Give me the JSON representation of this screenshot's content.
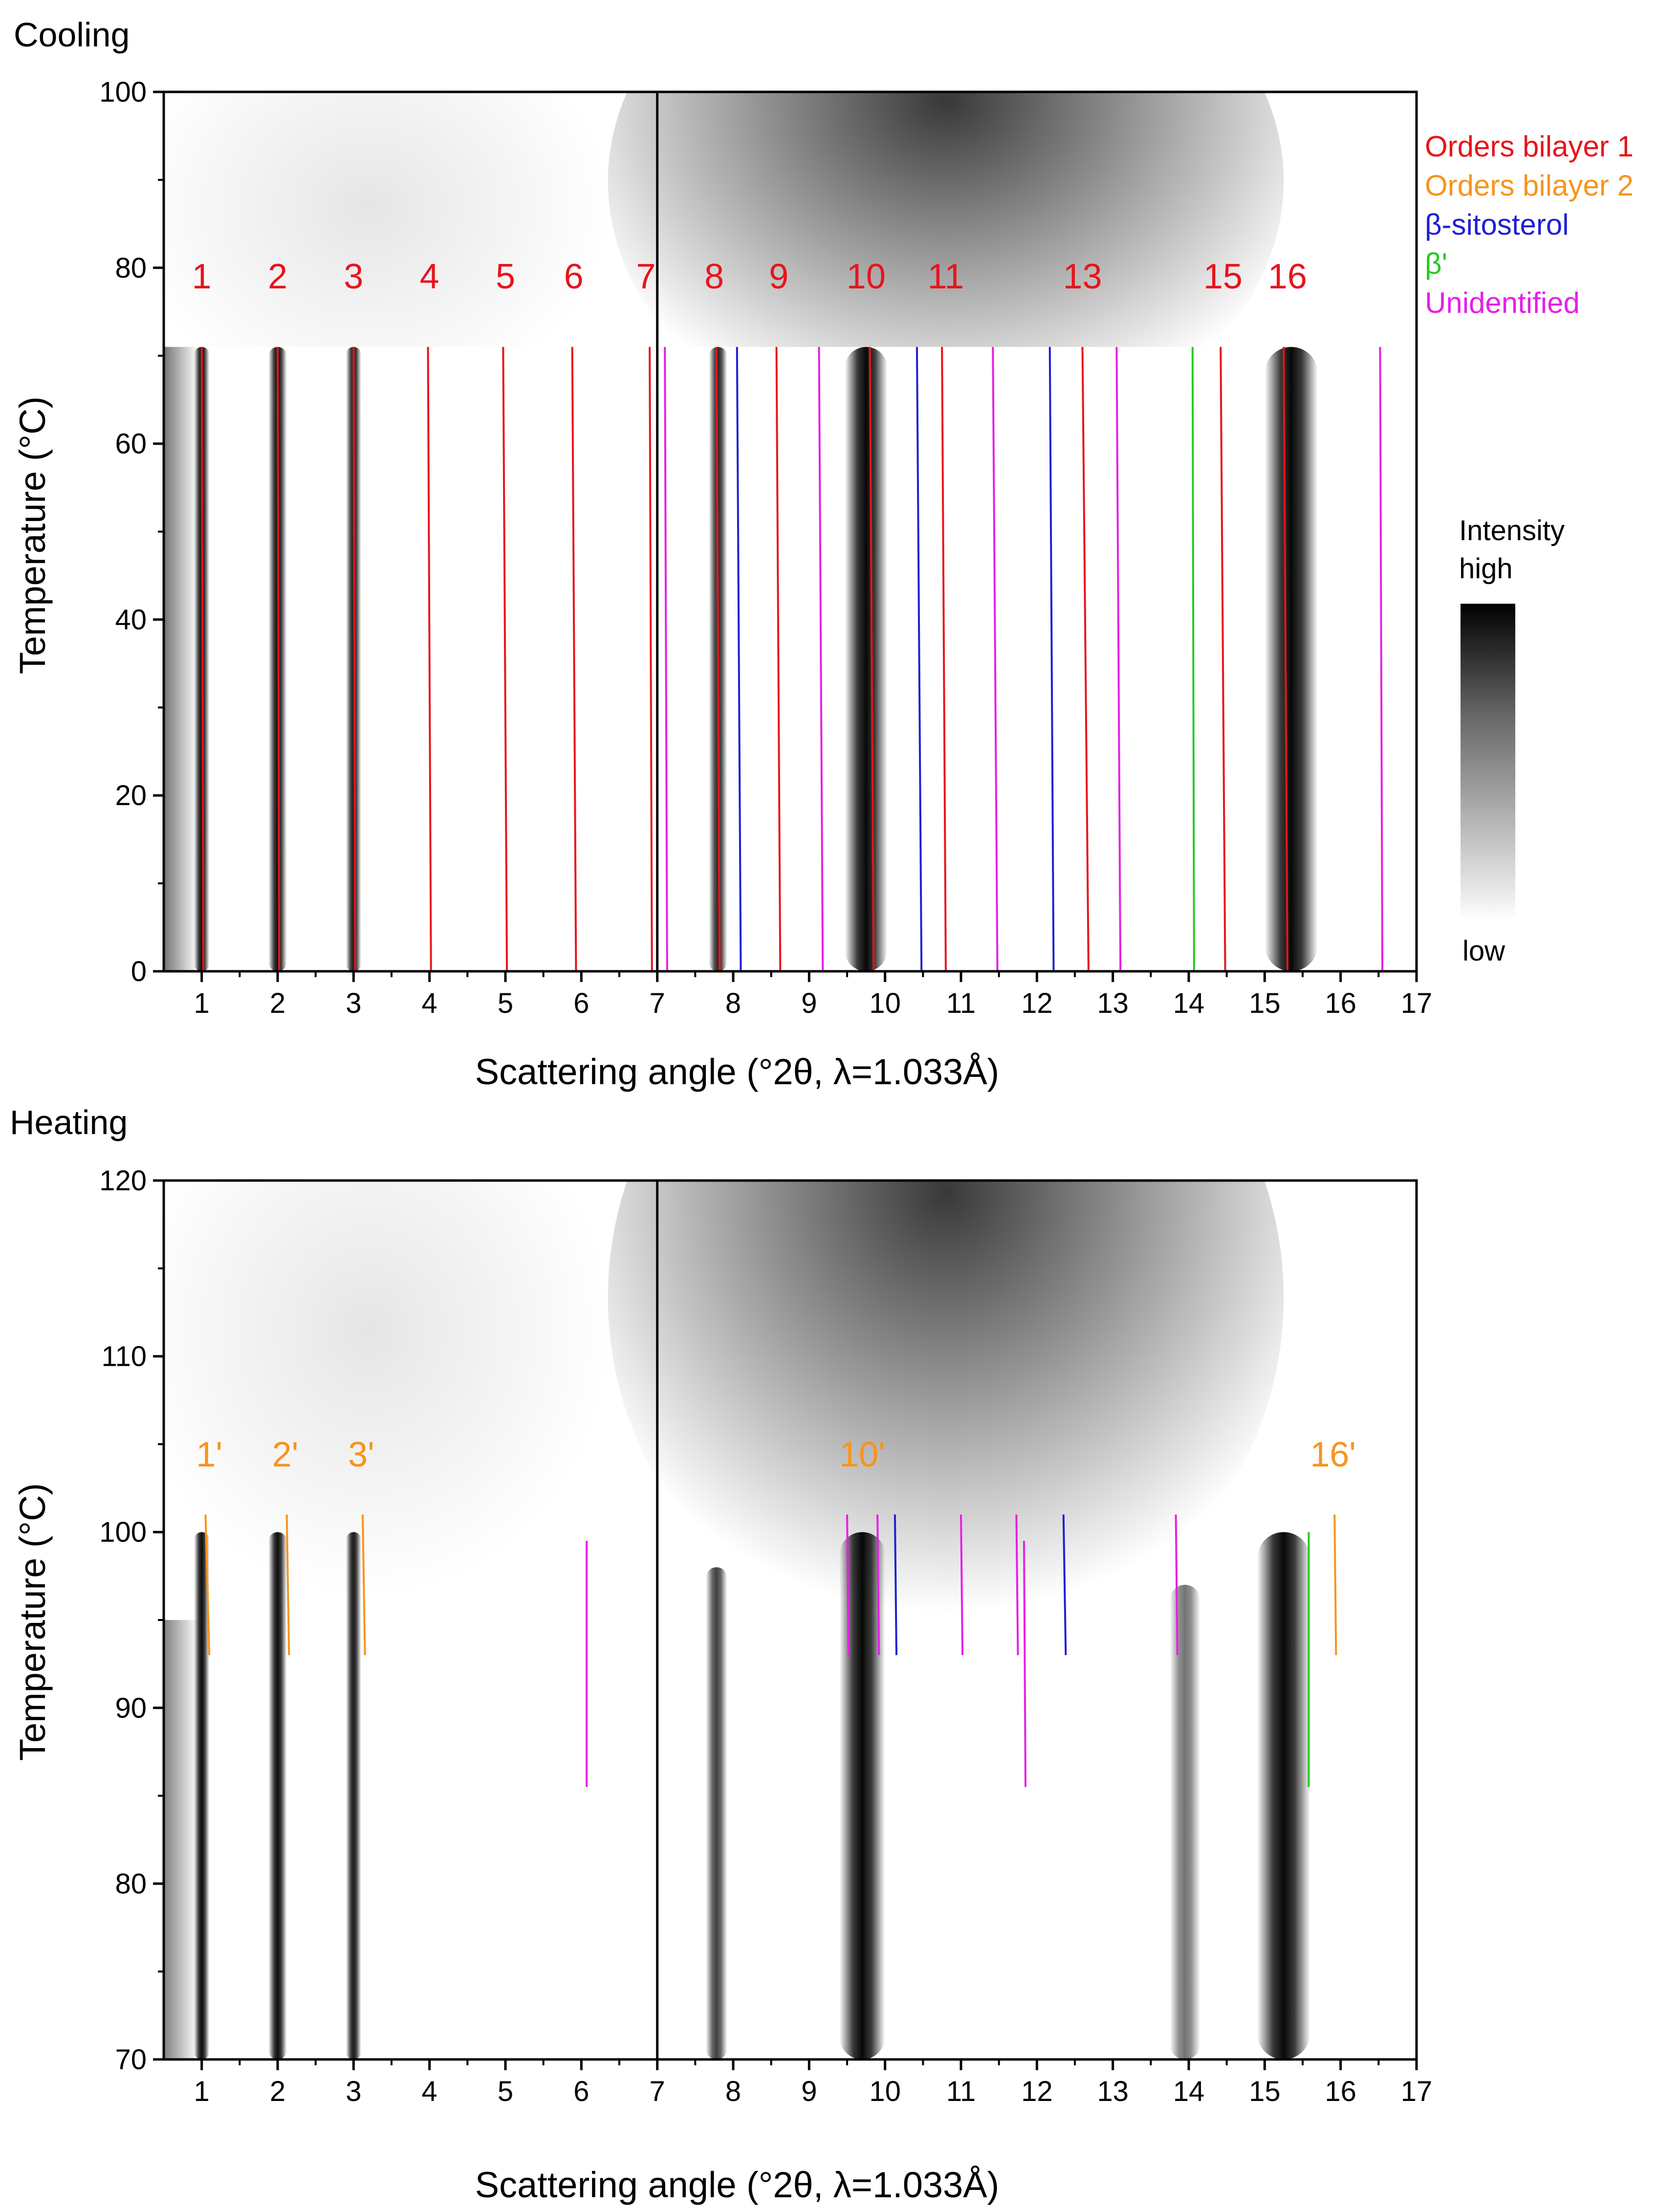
{
  "legend": [
    {
      "label": "Orders bilayer 1",
      "color": "#e8141b"
    },
    {
      "label": "Orders bilayer 2",
      "color": "#f7941d"
    },
    {
      "label": "β-sitosterol",
      "color": "#1f1fd6"
    },
    {
      "label": "β'",
      "color": "#22cc22"
    },
    {
      "label": "Unidentified",
      "color": "#e61fe6"
    }
  ],
  "colorbar": {
    "title": "Intensity",
    "high": "high",
    "low": "low"
  },
  "chart_data": [
    {
      "type": "heatmap",
      "panel_title": "Cooling",
      "xlabel": "Scattering angle (°2θ, λ=1.033Å)",
      "ylabel": "Temperature (°C)",
      "xlim": [
        0.5,
        17
      ],
      "ylim": [
        0,
        100
      ],
      "xticks": [
        1,
        2,
        3,
        4,
        5,
        6,
        7,
        8,
        9,
        10,
        11,
        12,
        13,
        14,
        15,
        16,
        17
      ],
      "yticks": [
        0,
        20,
        40,
        60,
        80,
        100
      ],
      "divider_x": 7,
      "transition_temp": 71,
      "order_labels": [
        {
          "text": "1",
          "x": 1.0
        },
        {
          "text": "2",
          "x": 2.0
        },
        {
          "text": "3",
          "x": 3.0
        },
        {
          "text": "4",
          "x": 4.0
        },
        {
          "text": "5",
          "x": 5.0
        },
        {
          "text": "6",
          "x": 5.9
        },
        {
          "text": "7",
          "x": 6.85
        },
        {
          "text": "8",
          "x": 7.75
        },
        {
          "text": "9",
          "x": 8.6
        },
        {
          "text": "10",
          "x": 9.75
        },
        {
          "text": "11",
          "x": 10.8
        },
        {
          "text": "13",
          "x": 12.6
        },
        {
          "text": "15",
          "x": 14.45
        },
        {
          "text": "16",
          "x": 15.3
        }
      ],
      "bands": [
        {
          "x": 1.0,
          "width": 0.1,
          "darkness": 0.95,
          "y_top": 71
        },
        {
          "x": 2.0,
          "width": 0.12,
          "darkness": 0.95,
          "y_top": 71
        },
        {
          "x": 3.0,
          "width": 0.1,
          "darkness": 0.9,
          "y_top": 71
        },
        {
          "x": 7.8,
          "width": 0.12,
          "darkness": 0.85,
          "y_top": 71
        },
        {
          "x": 9.75,
          "width": 0.28,
          "darkness": 0.97,
          "y_top": 71
        },
        {
          "x": 15.35,
          "width": 0.35,
          "darkness": 0.97,
          "y_top": 71
        }
      ],
      "marker_lines": [
        {
          "x": 1.0,
          "x_end": 1.02,
          "y": [
            0,
            71
          ],
          "category": 0
        },
        {
          "x": 2.0,
          "x_end": 2.02,
          "y": [
            0,
            71
          ],
          "category": 0
        },
        {
          "x": 3.0,
          "x_end": 3.02,
          "y": [
            0,
            71
          ],
          "category": 0
        },
        {
          "x": 3.98,
          "x_end": 4.02,
          "y": [
            0,
            71
          ],
          "category": 0
        },
        {
          "x": 4.97,
          "x_end": 5.02,
          "y": [
            0,
            71
          ],
          "category": 0
        },
        {
          "x": 5.88,
          "x_end": 5.93,
          "y": [
            0,
            71
          ],
          "category": 0
        },
        {
          "x": 6.9,
          "x_end": 6.93,
          "y": [
            0,
            71
          ],
          "category": 0
        },
        {
          "x": 7.1,
          "x_end": 7.13,
          "y": [
            0,
            71
          ],
          "category": 4
        },
        {
          "x": 7.78,
          "x_end": 7.82,
          "y": [
            0,
            71
          ],
          "category": 0
        },
        {
          "x": 8.05,
          "x_end": 8.1,
          "y": [
            0,
            71
          ],
          "category": 2
        },
        {
          "x": 8.57,
          "x_end": 8.62,
          "y": [
            0,
            71
          ],
          "category": 0
        },
        {
          "x": 9.13,
          "x_end": 9.18,
          "y": [
            0,
            71
          ],
          "category": 4
        },
        {
          "x": 9.8,
          "x_end": 9.85,
          "y": [
            0,
            71
          ],
          "category": 0
        },
        {
          "x": 10.42,
          "x_end": 10.48,
          "y": [
            0,
            71
          ],
          "category": 2
        },
        {
          "x": 10.75,
          "x_end": 10.8,
          "y": [
            0,
            71
          ],
          "category": 0
        },
        {
          "x": 11.42,
          "x_end": 11.48,
          "y": [
            0,
            71
          ],
          "category": 4
        },
        {
          "x": 12.17,
          "x_end": 12.22,
          "y": [
            0,
            71
          ],
          "category": 2
        },
        {
          "x": 12.6,
          "x_end": 12.68,
          "y": [
            0,
            71
          ],
          "category": 0
        },
        {
          "x": 13.05,
          "x_end": 13.1,
          "y": [
            0,
            71
          ],
          "category": 4
        },
        {
          "x": 14.05,
          "x_end": 14.07,
          "y": [
            0,
            71
          ],
          "category": 3
        },
        {
          "x": 14.42,
          "x_end": 14.48,
          "y": [
            0,
            71
          ],
          "category": 0
        },
        {
          "x": 15.25,
          "x_end": 15.3,
          "y": [
            0,
            71
          ],
          "category": 0
        },
        {
          "x": 16.52,
          "x_end": 16.55,
          "y": [
            0,
            71
          ],
          "category": 4
        }
      ]
    },
    {
      "type": "heatmap",
      "panel_title": "Heating",
      "xlabel": "Scattering angle (°2θ, λ=1.033Å)",
      "ylabel": "Temperature (°C)",
      "xlim": [
        0.5,
        17
      ],
      "ylim": [
        70,
        120
      ],
      "xticks": [
        1,
        2,
        3,
        4,
        5,
        6,
        7,
        8,
        9,
        10,
        11,
        12,
        13,
        14,
        15,
        16,
        17
      ],
      "yticks": [
        70,
        80,
        90,
        100,
        110,
        120
      ],
      "divider_x": 7,
      "order_labels": [
        {
          "text": "1'",
          "x": 1.1
        },
        {
          "text": "2'",
          "x": 2.1
        },
        {
          "text": "3'",
          "x": 3.1
        },
        {
          "text": "10'",
          "x": 9.7
        },
        {
          "text": "16'",
          "x": 15.9
        }
      ],
      "bands": [
        {
          "x": 1.0,
          "width": 0.1,
          "darkness": 0.95,
          "y_top": 100
        },
        {
          "x": 2.0,
          "width": 0.12,
          "darkness": 0.95,
          "y_top": 100
        },
        {
          "x": 3.0,
          "width": 0.1,
          "darkness": 0.9,
          "y_top": 100
        },
        {
          "x": 7.78,
          "width": 0.14,
          "darkness": 0.75,
          "y_top": 98
        },
        {
          "x": 9.7,
          "width": 0.3,
          "darkness": 0.97,
          "y_top": 100
        },
        {
          "x": 13.95,
          "width": 0.2,
          "darkness": 0.55,
          "y_top": 97
        },
        {
          "x": 15.25,
          "width": 0.35,
          "darkness": 0.97,
          "y_top": 100
        }
      ],
      "marker_lines": [
        {
          "x": 1.05,
          "x_end": 1.1,
          "y": [
            93,
            101
          ],
          "category": 1
        },
        {
          "x": 2.12,
          "x_end": 2.15,
          "y": [
            93,
            101
          ],
          "category": 1
        },
        {
          "x": 3.12,
          "x_end": 3.15,
          "y": [
            93,
            101
          ],
          "category": 1
        },
        {
          "x": 6.07,
          "x_end": 6.07,
          "y": [
            85.5,
            99.5
          ],
          "category": 4
        },
        {
          "x": 9.5,
          "x_end": 9.52,
          "y": [
            93,
            101
          ],
          "category": 4
        },
        {
          "x": 9.9,
          "x_end": 9.92,
          "y": [
            93,
            101
          ],
          "category": 4
        },
        {
          "x": 10.13,
          "x_end": 10.15,
          "y": [
            93,
            101
          ],
          "category": 2
        },
        {
          "x": 11.0,
          "x_end": 11.02,
          "y": [
            93,
            101
          ],
          "category": 4
        },
        {
          "x": 11.73,
          "x_end": 11.75,
          "y": [
            93,
            101
          ],
          "category": 4
        },
        {
          "x": 11.83,
          "x_end": 11.85,
          "y": [
            85.5,
            99.5
          ],
          "category": 4
        },
        {
          "x": 12.35,
          "x_end": 12.38,
          "y": [
            93,
            101
          ],
          "category": 2
        },
        {
          "x": 13.83,
          "x_end": 13.85,
          "y": [
            93,
            101
          ],
          "category": 4
        },
        {
          "x": 15.58,
          "x_end": 15.58,
          "y": [
            85.5,
            100
          ],
          "category": 3
        },
        {
          "x": 15.92,
          "x_end": 15.94,
          "y": [
            93,
            101
          ],
          "category": 1
        }
      ]
    }
  ]
}
